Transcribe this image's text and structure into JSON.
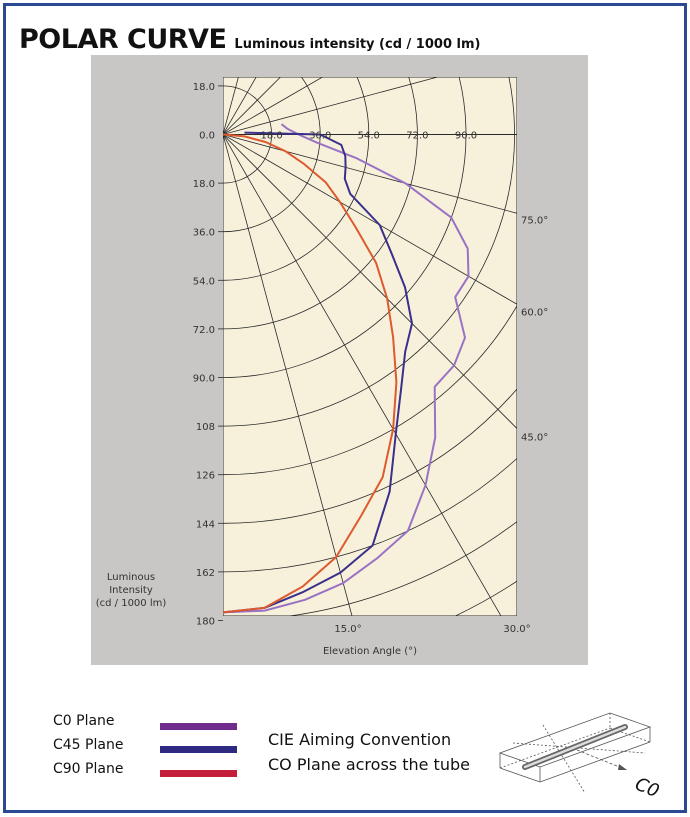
{
  "header": {
    "title": "POLAR CURVE",
    "subtitle": "Luminous intensity (cd / 1000 lm)"
  },
  "colors": {
    "frame": "#2c4a92",
    "panel": "#c8c7c5",
    "plot_bg": "#f7f1dc",
    "grid": "#2a2a2a",
    "c0": "#6f2c8c",
    "c45": "#2e2a82",
    "c90": "#c41e3a",
    "curve_c0": "#9a72c4",
    "curve_c45": "#3a2f8a",
    "curve_c90": "#dd5a2e"
  },
  "chart_data": {
    "type": "polar",
    "title": "POLAR CURVE",
    "units": "Luminous intensity (cd / 1000 lm)",
    "y_axis_label": "Luminous Intensity (cd / 1000 lm)",
    "y_tick_labels_upper": [
      "18.0",
      "0.0"
    ],
    "y_tick_labels": [
      "18.0",
      "36.0",
      "54.0",
      "72.0",
      "90.0",
      "108",
      "126",
      "144",
      "162",
      "180"
    ],
    "radial_labels_on_zero_line": [
      "18.0",
      "36.0",
      "54.0",
      "72.0",
      "90.0"
    ],
    "x_axis_label": "Elevation Angle (°)",
    "x_tick_labels": [
      "15.0°",
      "30.0°"
    ],
    "angle_labels_right": [
      "75.0°",
      "60.0°",
      "45.0°"
    ],
    "grid": true,
    "series": [
      {
        "name": "C0 Plane",
        "curve_color": "#9a72c4",
        "angles_deg": [
          0,
          5,
          10,
          15,
          20,
          25,
          30,
          35,
          40,
          45,
          50,
          55,
          60,
          65,
          70,
          75,
          80,
          85,
          90,
          95,
          100
        ],
        "intensities": [
          177,
          177,
          175,
          172,
          167,
          162,
          150,
          137,
          122,
          121,
          117,
          105,
          105,
          100,
          90,
          70,
          50,
          35,
          28,
          24,
          22
        ]
      },
      {
        "name": "C45 Plane",
        "curve_color": "#3a2f8a",
        "angles_deg": [
          0,
          5,
          10,
          15,
          20,
          25,
          30,
          35,
          40,
          45,
          50,
          55,
          60,
          65,
          70,
          75,
          80,
          85,
          90,
          95
        ],
        "intensities": [
          177,
          176,
          172,
          168,
          162,
          146,
          128,
          115,
          105,
          99,
          88,
          76,
          67,
          52,
          48,
          47,
          46,
          44,
          36,
          8
        ]
      },
      {
        "name": "C90 Plane",
        "curve_color": "#dd5a2e",
        "angles_deg": [
          0,
          5,
          10,
          15,
          20,
          25,
          30,
          35,
          40,
          45,
          50,
          55,
          60,
          65,
          70,
          75,
          80,
          85,
          90
        ],
        "intensities": [
          177,
          176,
          170,
          162,
          150,
          140,
          126,
          112,
          98,
          86,
          74,
          60,
          50,
          42,
          32,
          24,
          16,
          8,
          0
        ]
      }
    ]
  },
  "legend": {
    "items": [
      {
        "label": "C0 Plane",
        "color": "#6f2c8c"
      },
      {
        "label": "C45 Plane",
        "color": "#2e2a82"
      },
      {
        "label": "C90 Plane",
        "color": "#c41e3a"
      }
    ]
  },
  "convention": {
    "line1": "CIE Aiming Convention",
    "line2": "CO Plane across the tube",
    "diagram_label": "C0"
  }
}
